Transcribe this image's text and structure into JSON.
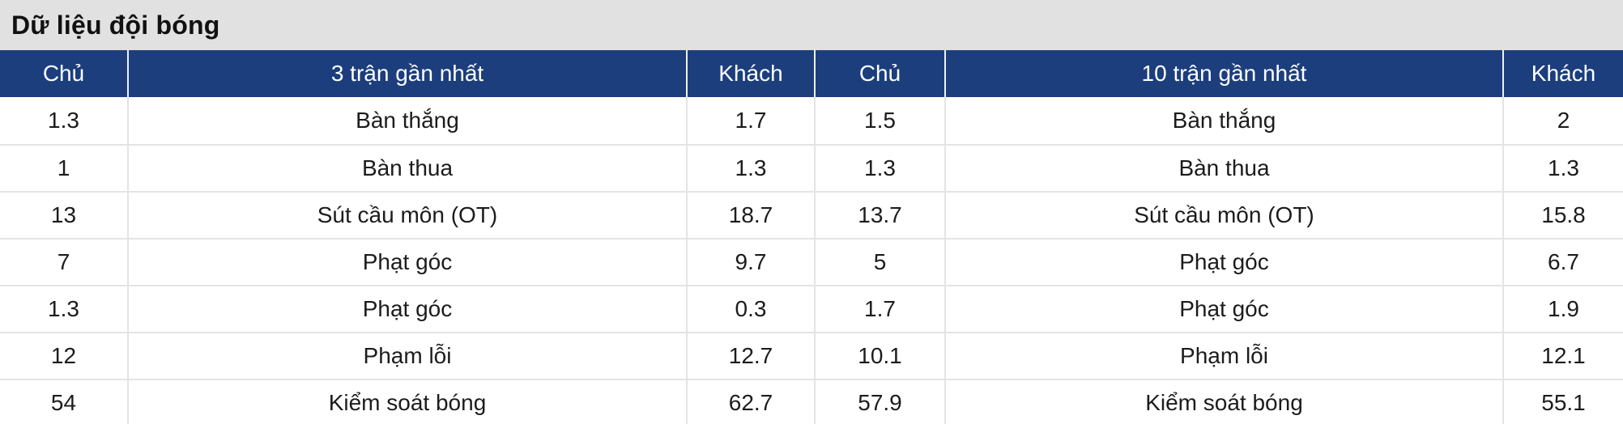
{
  "title": "Dữ liệu đội bóng",
  "colors": {
    "header_bg": "#1c3e7d",
    "title_bar_bg": "#e1e1e1",
    "separator": "#e4e4e4",
    "header_text": "#ffffff",
    "cell_text": "#1c1c1c"
  },
  "table": {
    "headers": [
      "Chủ",
      "3 trận gần nhất",
      "Khách",
      "Chủ",
      "10 trận gần nhất",
      "Khách"
    ],
    "rows": [
      [
        "1.3",
        "Bàn thắng",
        "1.7",
        "1.5",
        "Bàn thắng",
        "2"
      ],
      [
        "1",
        "Bàn thua",
        "1.3",
        "1.3",
        "Bàn thua",
        "1.3"
      ],
      [
        "13",
        "Sút cầu môn (OT)",
        "18.7",
        "13.7",
        "Sút cầu môn (OT)",
        "15.8"
      ],
      [
        "7",
        "Phạt góc",
        "9.7",
        "5",
        "Phạt góc",
        "6.7"
      ],
      [
        "1.3",
        "Phạt góc",
        "0.3",
        "1.7",
        "Phạt góc",
        "1.9"
      ],
      [
        "12",
        "Phạm lỗi",
        "12.7",
        "10.1",
        "Phạm lỗi",
        "12.1"
      ],
      [
        "54",
        "Kiểm soát bóng",
        "62.7",
        "57.9",
        "Kiểm soát bóng",
        "55.1"
      ]
    ]
  }
}
